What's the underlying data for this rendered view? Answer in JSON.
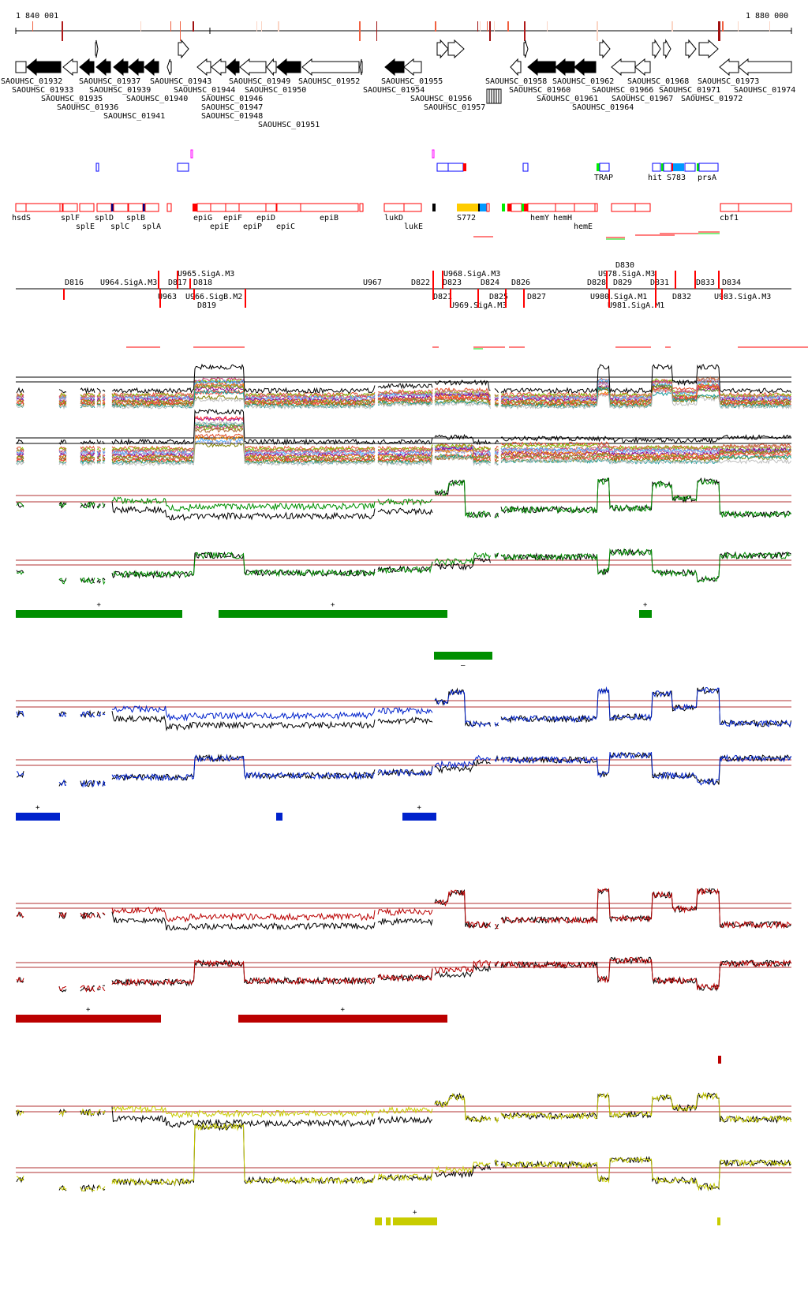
{
  "ruler": {
    "start_label": "1 840 001",
    "end_label": "1 880 000"
  },
  "genes": [
    {
      "label": "SAOUHSC_01932",
      "strand": "-"
    },
    {
      "label": "SAOUHSC_01933",
      "strand": "-"
    },
    {
      "label": "SAOUHSC_01935",
      "strand": "-"
    },
    {
      "label": "SAOUHSC_01936",
      "strand": "-"
    },
    {
      "label": "SAOUHSC_01937",
      "strand": "-"
    },
    {
      "label": "SAOUHSC_01939",
      "strand": "-"
    },
    {
      "label": "SAOUHSC_01940",
      "strand": "-"
    },
    {
      "label": "SAOUHSC_01941",
      "strand": "-"
    },
    {
      "label": "SAOUHSC_01943",
      "strand": "-"
    },
    {
      "label": "SAOUHSC_01944",
      "strand": "+"
    },
    {
      "label": "SAOUHSC_01946",
      "strand": "-"
    },
    {
      "label": "SAOUHSC_01947",
      "strand": "-"
    },
    {
      "label": "SAOUHSC_01948",
      "strand": "-"
    },
    {
      "label": "SAOUHSC_01949",
      "strand": "-"
    },
    {
      "label": "SAOUHSC_01950",
      "strand": "-"
    },
    {
      "label": "SAOUHSC_01951",
      "strand": "-"
    },
    {
      "label": "SAOUHSC_01952",
      "strand": "-"
    },
    {
      "label": "SAOUHSC_01954",
      "strand": "-"
    },
    {
      "label": "SAOUHSC_01955",
      "strand": "-"
    },
    {
      "label": "SAOUHSC_01956",
      "strand": "+"
    },
    {
      "label": "SAOUHSC_01957",
      "strand": "+"
    },
    {
      "label": "SAOUHSC_01958",
      "strand": "-"
    },
    {
      "label": "SAOUHSC_01960",
      "strand": "-"
    },
    {
      "label": "SAOUHSC_01961",
      "strand": "-"
    },
    {
      "label": "SAOUHSC_01962",
      "strand": "-"
    },
    {
      "label": "SAOUHSC_01964",
      "strand": "+"
    },
    {
      "label": "SAOUHSC_01966",
      "strand": "-"
    },
    {
      "label": "SAOUHSC_01967",
      "strand": "-"
    },
    {
      "label": "SAOUHSC_01968",
      "strand": "+"
    },
    {
      "label": "SAOUHSC_01971",
      "strand": "+"
    },
    {
      "label": "SAOUHSC_01972",
      "strand": "+"
    },
    {
      "label": "SAOUHSC_01973",
      "strand": "-"
    },
    {
      "label": "SAOUHSC_01974",
      "strand": "-"
    }
  ],
  "upper_features": [
    "TRAP",
    "hit",
    "S783",
    "prsA"
  ],
  "lower_features": [
    "hsdS",
    "splF",
    "splE",
    "splD",
    "splC",
    "splB",
    "splA",
    "epiG",
    "epiE",
    "epiF",
    "epiP",
    "epiD",
    "epiC",
    "epiB",
    "lukD",
    "lukE",
    "S772",
    "hemY",
    "hemH",
    "hemE",
    "cbf1"
  ],
  "regulatory": [
    "D816",
    "U964.SigA.M3",
    "U963",
    "U965.SigA.M3",
    "D817",
    "D818",
    "D819",
    "U966.SigB.M2",
    "U967",
    "D822",
    "D823",
    "U968.SigA.M3",
    "D821",
    "U969.SigA.M3",
    "D824",
    "D825",
    "D826",
    "D827",
    "D828",
    "U978.SigA.M3",
    "D829",
    "D830",
    "U980.SigA.M1",
    "U981.SigA.M1",
    "D831",
    "D832",
    "D833",
    "U983.SigA.M3",
    "D834"
  ],
  "segments": {
    "green": {
      "color": "#008f00",
      "upper": [
        {
          "sign": "+"
        },
        {
          "sign": "+"
        },
        {
          "sign": "+"
        }
      ],
      "lower": [
        {
          "sign": "–"
        }
      ]
    },
    "blue": {
      "color": "#0022cc",
      "upper": [
        {
          "sign": "+"
        },
        {
          "sign": ""
        },
        {
          "sign": "+"
        }
      ]
    },
    "red": {
      "color": "#bb0000",
      "upper": [
        {
          "sign": "+"
        },
        {
          "sign": "+"
        }
      ],
      "lower": [
        {
          "sign": ""
        }
      ]
    },
    "yellow": {
      "color": "#c8cc00",
      "upper": [
        {
          "sign": ""
        },
        {
          "sign": ""
        },
        {
          "sign": "+"
        },
        {
          "sign": ""
        }
      ]
    }
  },
  "colors": {
    "feature_outline": "#ff0000",
    "upper_outline": "#0000ff",
    "reference_line": "#b03030",
    "light_blue": "#0099ff",
    "orange": "#ffcc00",
    "lime": "#00ee00",
    "navy": "#000080"
  }
}
